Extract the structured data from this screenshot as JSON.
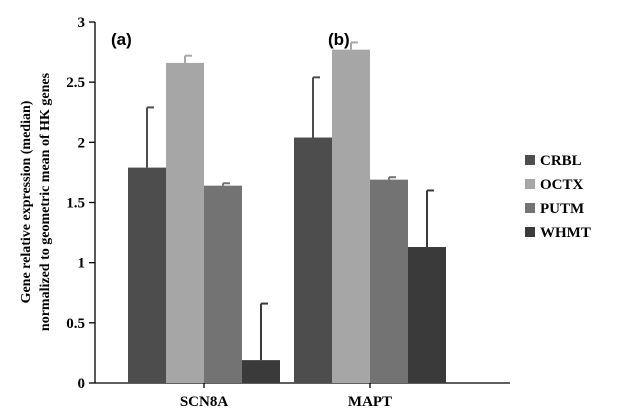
{
  "chart_data": {
    "type": "bar",
    "categories": [
      "SCN8A",
      "MAPT"
    ],
    "panel_labels": [
      "(a)",
      "(b)"
    ],
    "series": [
      {
        "name": "CRBL",
        "color": "#4d4d4d",
        "values": [
          1.79,
          2.04
        ],
        "errors": [
          0.5,
          0.5
        ]
      },
      {
        "name": "OCTX",
        "color": "#a6a6a6",
        "values": [
          2.66,
          2.77
        ],
        "errors": [
          0.06,
          0.06
        ]
      },
      {
        "name": "PUTM",
        "color": "#737373",
        "values": [
          1.64,
          1.69
        ],
        "errors": [
          0.02,
          0.02
        ]
      },
      {
        "name": "WHMT",
        "color": "#3a3a3a",
        "values": [
          0.19,
          1.13
        ],
        "errors": [
          0.47,
          0.47
        ]
      }
    ],
    "ylabel_lines": [
      "Gene relative expression (median)",
      "normalized to geometric mean of HK genes"
    ],
    "ylim": [
      0,
      3
    ],
    "yticks": [
      "0",
      "0.5",
      "1",
      "1.5",
      "2",
      "2.5",
      "3"
    ],
    "grid": false,
    "legend_position": "right"
  }
}
